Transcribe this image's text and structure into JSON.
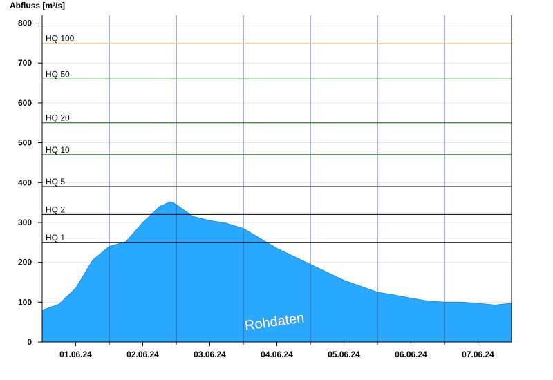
{
  "chart_data": {
    "type": "area",
    "ylabel": "Abfluss [m³/s]",
    "ylim": [
      0,
      820
    ],
    "y_ticks": [
      0,
      100,
      200,
      300,
      400,
      500,
      600,
      700,
      800
    ],
    "x_range": [
      "2024-06-01T00:00",
      "2024-06-08T00:00"
    ],
    "x_tick_labels": [
      "01.06.24",
      "02.06.24",
      "03.06.24",
      "04.06.24",
      "05.06.24",
      "06.06.24",
      "07.06.24"
    ],
    "grid": true,
    "thresholds": [
      {
        "label": "HQ 1",
        "value": 250,
        "color": "#000000"
      },
      {
        "label": "HQ 2",
        "value": 320,
        "color": "#000000"
      },
      {
        "label": "HQ 5",
        "value": 390,
        "color": "#000000"
      },
      {
        "label": "HQ 10",
        "value": 470,
        "color": "#006400"
      },
      {
        "label": "HQ 20",
        "value": 550,
        "color": "#006400"
      },
      {
        "label": "HQ 50",
        "value": 660,
        "color": "#006400"
      },
      {
        "label": "HQ 100",
        "value": 750,
        "color": "#f0d060"
      }
    ],
    "series": [
      {
        "color": "#29a8ff",
        "x": [
          "2024-06-01T00:00",
          "2024-06-01T06:00",
          "2024-06-01T12:00",
          "2024-06-01T18:00",
          "2024-06-02T00:00",
          "2024-06-02T06:00",
          "2024-06-02T12:00",
          "2024-06-02T18:00",
          "2024-06-02T22:00",
          "2024-06-03T00:00",
          "2024-06-03T06:00",
          "2024-06-03T12:00",
          "2024-06-03T18:00",
          "2024-06-04T00:00",
          "2024-06-04T06:00",
          "2024-06-04T12:00",
          "2024-06-04T18:00",
          "2024-06-05T00:00",
          "2024-06-05T06:00",
          "2024-06-05T12:00",
          "2024-06-05T18:00",
          "2024-06-06T00:00",
          "2024-06-06T06:00",
          "2024-06-06T12:00",
          "2024-06-06T18:00",
          "2024-06-07T00:00",
          "2024-06-07T06:00",
          "2024-06-07T12:00",
          "2024-06-07T18:00",
          "2024-06-08T00:00"
        ],
        "y": [
          80,
          95,
          135,
          205,
          240,
          252,
          300,
          340,
          352,
          345,
          315,
          305,
          298,
          285,
          260,
          235,
          215,
          195,
          175,
          155,
          140,
          125,
          118,
          110,
          103,
          100,
          100,
          97,
          93,
          97
        ]
      }
    ],
    "watermark": "Rohdaten"
  }
}
